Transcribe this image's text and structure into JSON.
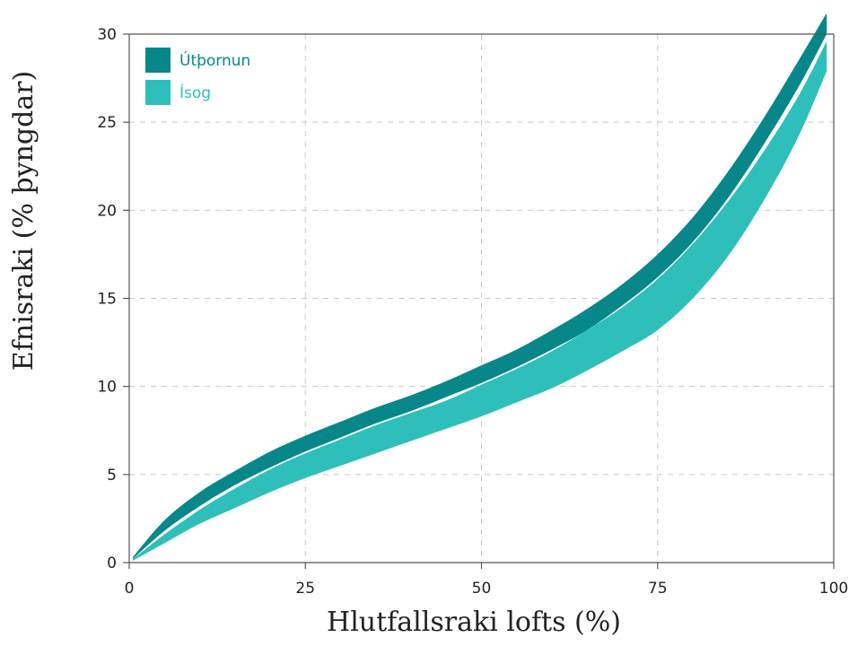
{
  "chart_data": {
    "type": "area",
    "xlabel": "Hlutfallsraki lofts (%)",
    "ylabel": "Efnisraki (% þyngdar)",
    "xlim": [
      0,
      100
    ],
    "ylim": [
      0,
      30
    ],
    "xticks": [
      "0",
      "25",
      "50",
      "75",
      "100"
    ],
    "yticks": [
      "0",
      "5",
      "10",
      "15",
      "20",
      "25",
      "30"
    ],
    "grid": true,
    "legend_position": "top-left",
    "series": [
      {
        "name": "Útþornun",
        "color": "#07878a",
        "x": [
          0.5,
          5,
          10,
          15,
          20,
          25,
          30,
          35,
          40,
          45,
          50,
          55,
          60,
          65,
          70,
          75,
          80,
          85,
          90,
          95,
          99
        ],
        "upper": [
          0.3,
          2.4,
          4.0,
          5.2,
          6.3,
          7.2,
          8.0,
          8.8,
          9.5,
          10.3,
          11.2,
          12.1,
          13.2,
          14.4,
          15.8,
          17.5,
          19.6,
          22.2,
          25.2,
          28.5,
          31.2
        ],
        "lower": [
          0.2,
          1.8,
          3.2,
          4.4,
          5.4,
          6.3,
          7.1,
          7.9,
          8.6,
          9.4,
          10.2,
          11.1,
          12.1,
          13.2,
          14.6,
          16.2,
          18.2,
          20.7,
          23.7,
          27.0,
          30.0
        ]
      },
      {
        "name": "Ísog",
        "color": "#2ebfba",
        "x": [
          0.5,
          5,
          10,
          15,
          20,
          25,
          30,
          35,
          40,
          45,
          50,
          55,
          60,
          65,
          70,
          75,
          80,
          85,
          90,
          95,
          99
        ],
        "upper": [
          0.2,
          1.6,
          3.0,
          4.2,
          5.3,
          6.2,
          7.0,
          7.8,
          8.5,
          9.2,
          10.1,
          11.0,
          12.0,
          13.2,
          14.5,
          16.1,
          18.1,
          20.5,
          23.3,
          26.5,
          29.6
        ],
        "lower": [
          0.1,
          1.1,
          2.2,
          3.1,
          4.0,
          4.8,
          5.5,
          6.2,
          6.9,
          7.6,
          8.3,
          9.1,
          9.9,
          10.9,
          12.0,
          13.2,
          15.0,
          17.4,
          20.5,
          24.2,
          27.9
        ]
      }
    ]
  }
}
